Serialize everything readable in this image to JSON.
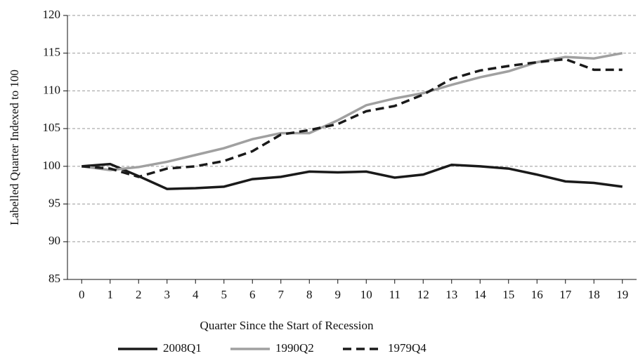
{
  "chart_data": {
    "type": "line",
    "x_label": "Quarter Since the Start of Recession",
    "y_label": "Labelled Quarter Indexed to 100",
    "x": [
      0,
      1,
      2,
      3,
      4,
      5,
      6,
      7,
      8,
      9,
      10,
      11,
      12,
      13,
      14,
      15,
      16,
      17,
      18,
      19
    ],
    "xlim": [
      -0.5,
      19.5
    ],
    "xticks": [
      0,
      1,
      2,
      3,
      4,
      5,
      6,
      7,
      8,
      9,
      10,
      11,
      12,
      13,
      14,
      15,
      16,
      17,
      18,
      19
    ],
    "ylim": [
      85,
      120
    ],
    "yticks": [
      85,
      90,
      95,
      100,
      105,
      110,
      115,
      120
    ],
    "grid": true,
    "legend": "bottom",
    "series": [
      {
        "name": "2008Q1",
        "color": "#1a1a1a",
        "dash": "solid",
        "values": [
          100,
          100.3,
          98.7,
          97.0,
          97.1,
          97.3,
          98.3,
          98.6,
          99.3,
          99.2,
          99.3,
          98.5,
          98.9,
          100.2,
          100.0,
          99.7,
          98.9,
          98.0,
          97.8,
          97.3
        ]
      },
      {
        "name": "1990Q2",
        "color": "#a0a0a0",
        "dash": "solid",
        "values": [
          100,
          99.5,
          99.9,
          100.6,
          101.5,
          102.4,
          103.6,
          104.4,
          104.4,
          106.1,
          108.1,
          109.0,
          109.7,
          110.8,
          111.8,
          112.6,
          113.8,
          114.5,
          114.3,
          115.0
        ]
      },
      {
        "name": "1979Q4",
        "color": "#1a1a1a",
        "dash": "dashed",
        "values": [
          100,
          99.7,
          98.6,
          99.7,
          100.0,
          100.7,
          102.0,
          104.2,
          104.8,
          105.6,
          107.3,
          108.0,
          109.5,
          111.6,
          112.7,
          113.3,
          113.8,
          114.2,
          112.8,
          112.8
        ]
      }
    ]
  }
}
